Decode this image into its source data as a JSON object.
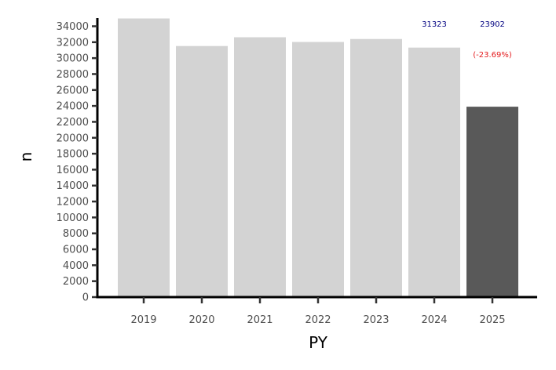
{
  "chart_data": {
    "type": "bar",
    "title": "",
    "xlabel": "PY",
    "ylabel": "n",
    "categories": [
      "2019",
      "2020",
      "2021",
      "2022",
      "2023",
      "2024",
      "2025"
    ],
    "values": [
      34980,
      31520,
      32620,
      32030,
      32400,
      31323,
      23902
    ],
    "ylim": [
      0,
      35000
    ],
    "yticks": [
      0,
      2000,
      4000,
      6000,
      8000,
      10000,
      12000,
      14000,
      16000,
      18000,
      20000,
      22000,
      24000,
      26000,
      28000,
      30000,
      32000,
      34000
    ],
    "grid": false,
    "legend": "none",
    "colors": {
      "default": "#d3d3d3",
      "highlight": "#595959"
    },
    "highlight_index": 6,
    "annotations": [
      {
        "category": "2024",
        "text": "31323",
        "color": "#000080"
      },
      {
        "category": "2025",
        "text": "23902",
        "color": "#000080"
      },
      {
        "category": "2025",
        "text": "(-23.69%)",
        "color": "#e41a1c"
      }
    ]
  }
}
